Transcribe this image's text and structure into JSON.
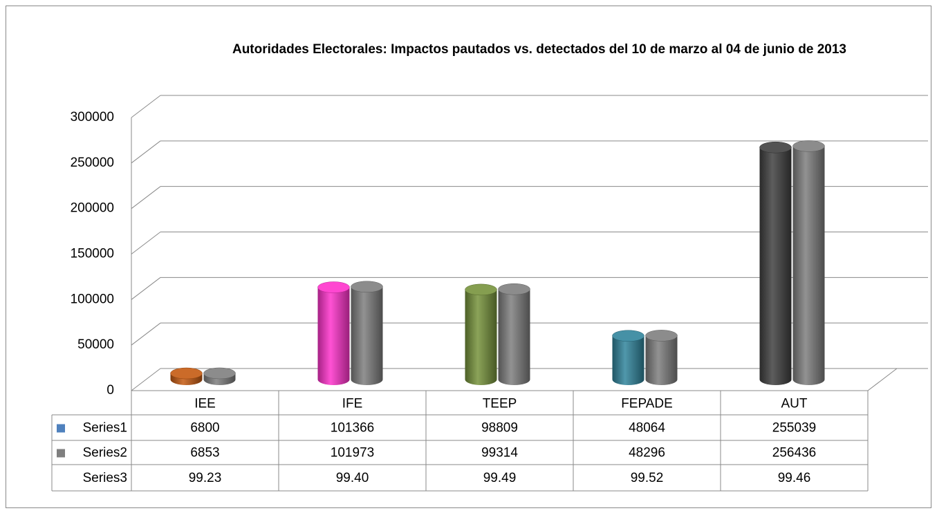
{
  "chart_data": {
    "type": "bar3d",
    "title": "Autoridades Electorales: Impactos pautados vs. detectados del 10 de marzo al 04 de junio de 2013",
    "categories": [
      "IEE",
      "IFE",
      "TEEP",
      "FEPADE",
      "AUT"
    ],
    "series": [
      {
        "name": "Series1",
        "color": "#4f81bd",
        "colors": [
          "#c55a11",
          "#ff33cc",
          "#77933c",
          "#31859c",
          "#404040"
        ],
        "values": [
          6800,
          101366,
          98809,
          48064,
          255039
        ]
      },
      {
        "name": "Series2",
        "color": "#7f7f7f",
        "values": [
          6853,
          101973,
          99314,
          48296,
          256436
        ]
      },
      {
        "name": "Series3",
        "values": [
          99.23,
          99.4,
          99.49,
          99.52,
          99.46
        ],
        "value_labels": [
          "99.23",
          "99.40",
          "99.49",
          "99.52",
          "99.46"
        ]
      }
    ],
    "ylim": [
      0,
      300000
    ],
    "yticks": [
      0,
      50000,
      100000,
      150000,
      200000,
      250000,
      300000
    ],
    "grid": true
  }
}
